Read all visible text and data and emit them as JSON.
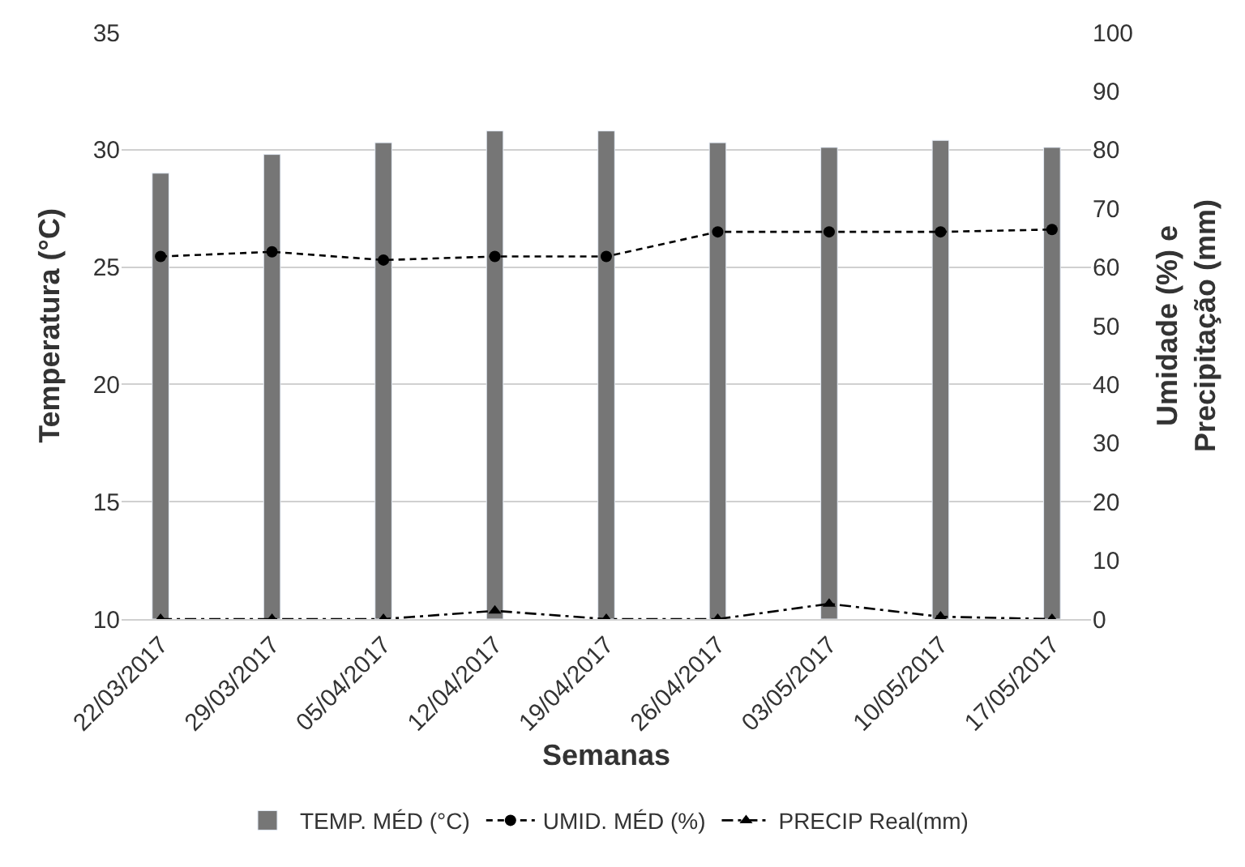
{
  "chart_data": {
    "type": "bar",
    "categories": [
      "22/03/2017",
      "29/03/2017",
      "05/04/2017",
      "12/04/2017",
      "19/04/2017",
      "26/04/2017",
      "03/05/2017",
      "10/05/2017",
      "17/05/2017"
    ],
    "xlabel": "Semanas",
    "ylabel": "Temperatura (°C)",
    "y2label": "Umidade (%) e Precipitação (mm)",
    "series": [
      {
        "name": "TEMP. MÉD (°C)",
        "color": "#767676",
        "values": [
          29.0,
          29.8,
          30.3,
          30.8,
          30.8,
          30.3,
          30.1,
          30.4,
          30.1
        ]
      },
      {
        "name": "UMID. MÉD (%)",
        "type": "line",
        "axis": "y2",
        "color": "#000000",
        "marker": "circle",
        "line_style": "dashed",
        "values": [
          61.8,
          62.6,
          61.2,
          61.8,
          61.8,
          66.0,
          66.0,
          66.0,
          66.4
        ]
      },
      {
        "name": "PRECIP Real(mm)",
        "type": "line",
        "axis": "y2",
        "color": "#000000",
        "marker": "triangle",
        "line_style": "dashdot",
        "values": [
          0,
          0,
          0,
          1.4,
          0,
          0,
          2.6,
          0.4,
          0
        ]
      }
    ],
    "ylim": [
      10,
      35
    ],
    "yticks": [
      10,
      15,
      20,
      25,
      30,
      35
    ],
    "y2lim": [
      0,
      100
    ],
    "y2ticks": [
      0,
      10,
      20,
      30,
      40,
      50,
      60,
      70,
      80,
      90,
      100
    ],
    "grid": "y",
    "legend": "bottom"
  }
}
